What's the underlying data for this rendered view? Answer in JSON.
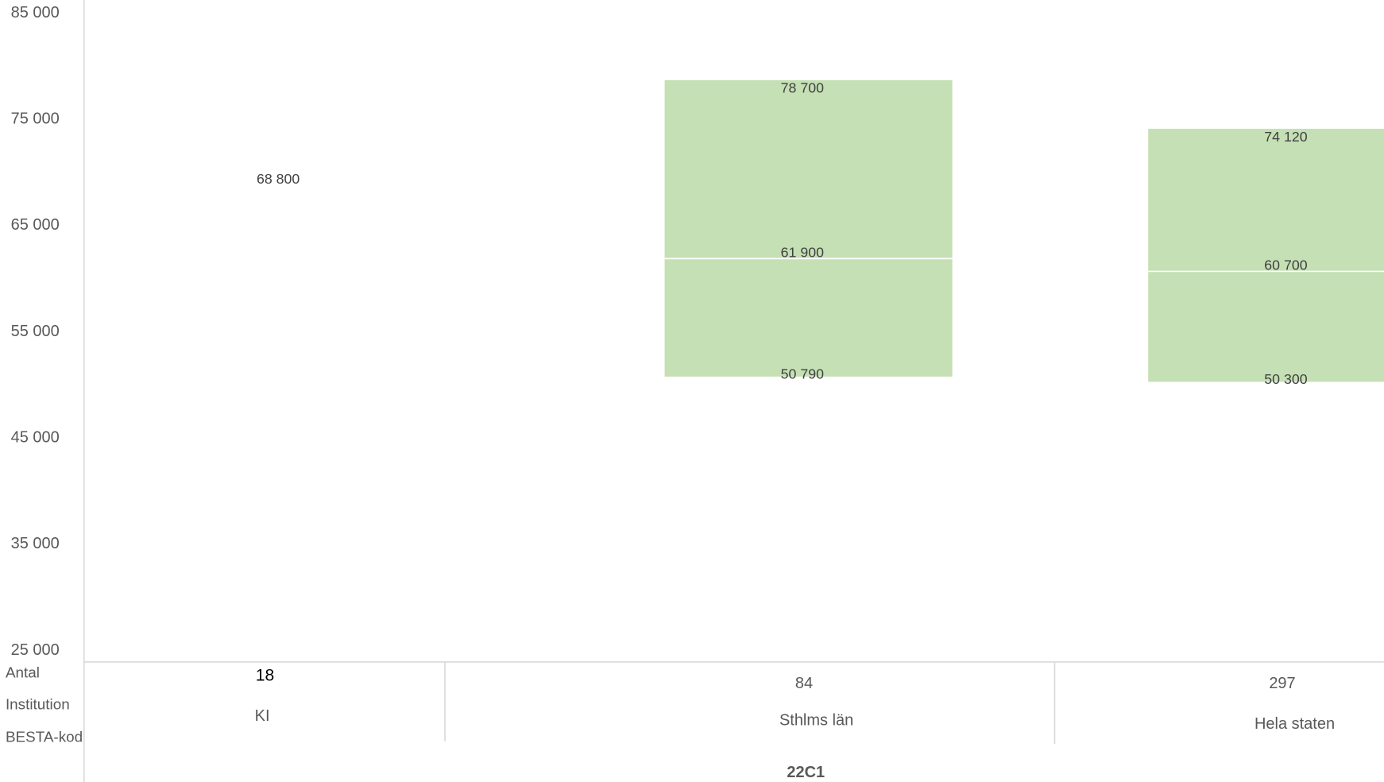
{
  "chart_data": {
    "type": "box",
    "categories": [
      "KI",
      "Sthlms län",
      "Hela staten"
    ],
    "low": [
      null,
      50790,
      50300
    ],
    "low_labels": [
      null,
      "50 790",
      "50 300"
    ],
    "median": [
      68800,
      61900,
      60700
    ],
    "median_labels": [
      "68 800",
      "61 900",
      "60 700"
    ],
    "high": [
      null,
      78700,
      74120
    ],
    "high_labels": [
      null,
      "78 700",
      "74 120"
    ],
    "color": "#c5e0b4",
    "median_color": "#ffffff",
    "ylim": [
      25000,
      85000
    ],
    "yticks": [
      {
        "value": 25000,
        "label": "25 000"
      },
      {
        "value": 35000,
        "label": "35 000"
      },
      {
        "value": 45000,
        "label": "45 000"
      },
      {
        "value": 55000,
        "label": "55 000"
      },
      {
        "value": 65000,
        "label": "65 000"
      },
      {
        "value": 75000,
        "label": "75 000"
      },
      {
        "value": 85000,
        "label": "85 000"
      }
    ],
    "row_labels": [
      "Antal",
      "Institution",
      "BESTA-kod"
    ],
    "counts": [
      18,
      84,
      297
    ],
    "group": "22C1"
  }
}
